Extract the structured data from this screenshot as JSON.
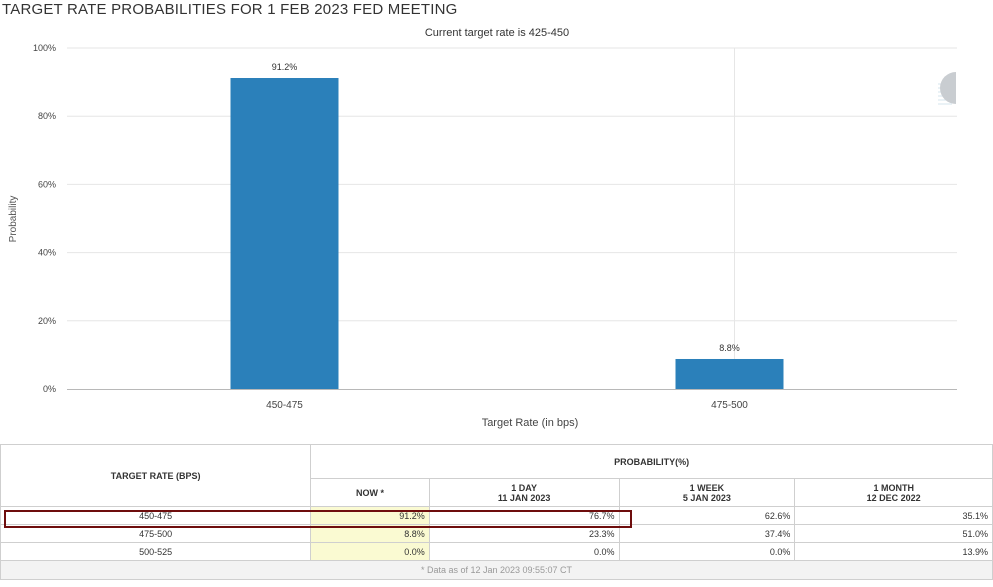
{
  "page": {
    "title": "TARGET RATE PROBABILITIES FOR 1 FEB 2023 FED MEETING"
  },
  "chart_data": {
    "type": "bar",
    "title": "",
    "subtitle": "Current target rate is 425-450",
    "categories": [
      "450-475",
      "475-500"
    ],
    "values": [
      91.2,
      8.8
    ],
    "data_labels": [
      "91.2%",
      "8.8%"
    ],
    "xlabel": "Target Rate (in bps)",
    "ylabel": "Probability",
    "ylim": [
      0,
      100
    ],
    "yticks": [
      0,
      20,
      40,
      60,
      80,
      100
    ],
    "ytick_labels": [
      "0%",
      "20%",
      "40%",
      "60%",
      "80%",
      "100%"
    ],
    "grid": true,
    "bar_color": "#2b80ba"
  },
  "table": {
    "header_left": "TARGET RATE (BPS)",
    "header_group": "PROBABILITY(%)",
    "columns": [
      {
        "line1": "NOW *",
        "line2": ""
      },
      {
        "line1": "1 DAY",
        "line2": "11 JAN 2023"
      },
      {
        "line1": "1 WEEK",
        "line2": "5 JAN 2023"
      },
      {
        "line1": "1 MONTH",
        "line2": "12 DEC 2022"
      }
    ],
    "rows": [
      {
        "rate": "450-475",
        "values": [
          "91.2%",
          "76.7%",
          "62.6%",
          "35.1%"
        ]
      },
      {
        "rate": "475-500",
        "values": [
          "8.8%",
          "23.3%",
          "37.4%",
          "51.0%"
        ]
      },
      {
        "rate": "500-525",
        "values": [
          "0.0%",
          "0.0%",
          "0.0%",
          "13.9%"
        ]
      }
    ],
    "footnote": "* Data as of 12 Jan 2023 09:55:07 CT"
  },
  "colors": {
    "highlight_border": "#6e0d0d",
    "now_column_bg": "#fafad2"
  }
}
